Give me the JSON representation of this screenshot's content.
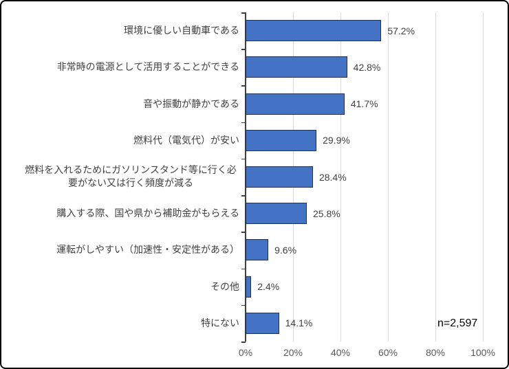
{
  "chart_data": {
    "type": "bar",
    "orientation": "horizontal",
    "title": "",
    "xlabel": "",
    "ylabel": "",
    "categories": [
      "環境に優しい自動車である",
      "非常時の電源として活用することができる",
      "音や振動が静かである",
      "燃料代（電気代）が安い",
      "燃料を入れるためにガソリンスタンド等に行く必要がない又は行く頻度が減る",
      "購入する際、国や県から補助金がもらえる",
      "運転がしやすい（加速性・安定性がある）",
      "その他",
      "特にない"
    ],
    "values": [
      57.2,
      42.8,
      41.7,
      29.9,
      28.4,
      25.8,
      9.6,
      2.4,
      14.1
    ],
    "value_labels": [
      "57.2%",
      "42.8%",
      "41.7%",
      "29.9%",
      "28.4%",
      "25.8%",
      "9.6%",
      "2.4%",
      "14.1%"
    ],
    "x_ticks": [
      "0%",
      "20%",
      "40%",
      "60%",
      "80%",
      "100%"
    ],
    "x_tick_values": [
      0,
      20,
      40,
      60,
      80,
      100
    ],
    "xlim": [
      0,
      100
    ],
    "grid": true,
    "legend": false,
    "n_label": "n=2,597",
    "colors": {
      "bar_fill": "#4472c4",
      "bar_border": "#1f3050",
      "gridline": "#d9d9d9",
      "axis": "#404040",
      "category_label": "#404040",
      "value_label": "#404040",
      "x_tick_label": "#595959",
      "n_label": "#000000"
    }
  }
}
